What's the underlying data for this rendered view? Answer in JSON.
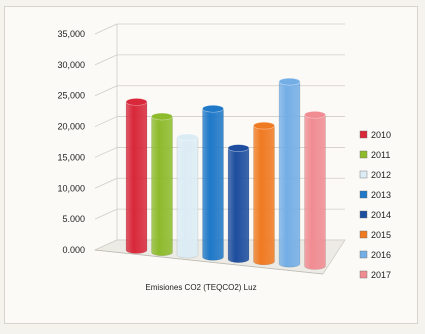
{
  "chart_data": {
    "type": "bar",
    "title": "",
    "xlabel": "Emisiones CO2 (TEQCO2) Luz",
    "ylabel": "",
    "categories": [
      "Emisiones CO2 (TEQCO2) Luz"
    ],
    "ylim": [
      0,
      35000
    ],
    "yticks": [
      "0.000",
      "5.000",
      "10,000",
      "15,000",
      "20,000",
      "25,000",
      "30,000",
      "35,000"
    ],
    "yticks_values": [
      0,
      5000,
      10000,
      15000,
      20000,
      25000,
      30000,
      35000
    ],
    "grid": true,
    "legend_position": "right",
    "series": [
      {
        "name": "2010",
        "values": [
          24000
        ],
        "color": "#d8283a"
      },
      {
        "name": "2011",
        "values": [
          22000
        ],
        "color": "#8dbb2c"
      },
      {
        "name": "2012",
        "values": [
          19000
        ],
        "color": "#dcecf5"
      },
      {
        "name": "2013",
        "values": [
          24000
        ],
        "color": "#1f78c8"
      },
      {
        "name": "2014",
        "values": [
          18000
        ],
        "color": "#1d4d9e"
      },
      {
        "name": "2015",
        "values": [
          22000
        ],
        "color": "#f07a22"
      },
      {
        "name": "2016",
        "values": [
          29500
        ],
        "color": "#74aee6"
      },
      {
        "name": "2017",
        "values": [
          24500
        ],
        "color": "#f08c92"
      }
    ]
  }
}
